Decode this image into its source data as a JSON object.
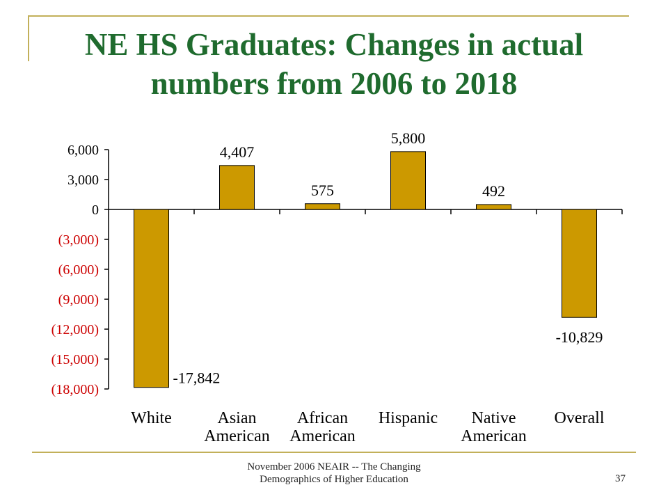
{
  "title_line1": "NE HS Graduates:  Changes in actual",
  "title_line2": "numbers from 2006 to 2018",
  "footer_line1": "November 2006 NEAIR -- The Changing",
  "footer_line2": "Demographics of Higher Education",
  "page_number": "37",
  "colors": {
    "bar": "#cc9900",
    "title": "#1f6b2e",
    "negative_tick": "#cc0000",
    "frame": "#c2b05a"
  },
  "chart_data": {
    "type": "bar",
    "title": "NE HS Graduates:  Changes in actual numbers from 2006 to 2018",
    "categories": [
      [
        "White"
      ],
      [
        "Asian",
        "American"
      ],
      [
        "African",
        "American"
      ],
      [
        "Hispanic"
      ],
      [
        "Native",
        "American"
      ],
      [
        "Overall"
      ]
    ],
    "values": [
      -17842,
      4407,
      575,
      5800,
      492,
      -10829
    ],
    "data_labels": [
      "-17,842",
      "4,407",
      "575",
      "5,800",
      "492",
      "-10,829"
    ],
    "y_ticks": [
      6000,
      3000,
      0,
      -3000,
      -6000,
      -9000,
      -12000,
      -15000,
      -18000
    ],
    "y_tick_labels": [
      "6,000",
      "3,000",
      "0",
      "(3,000)",
      "(6,000)",
      "(9,000)",
      "(12,000)",
      "(15,000)",
      "(18,000)"
    ],
    "ylim": [
      -18000,
      6000
    ],
    "xlabel": "",
    "ylabel": "",
    "grid": false,
    "legend": "none"
  }
}
